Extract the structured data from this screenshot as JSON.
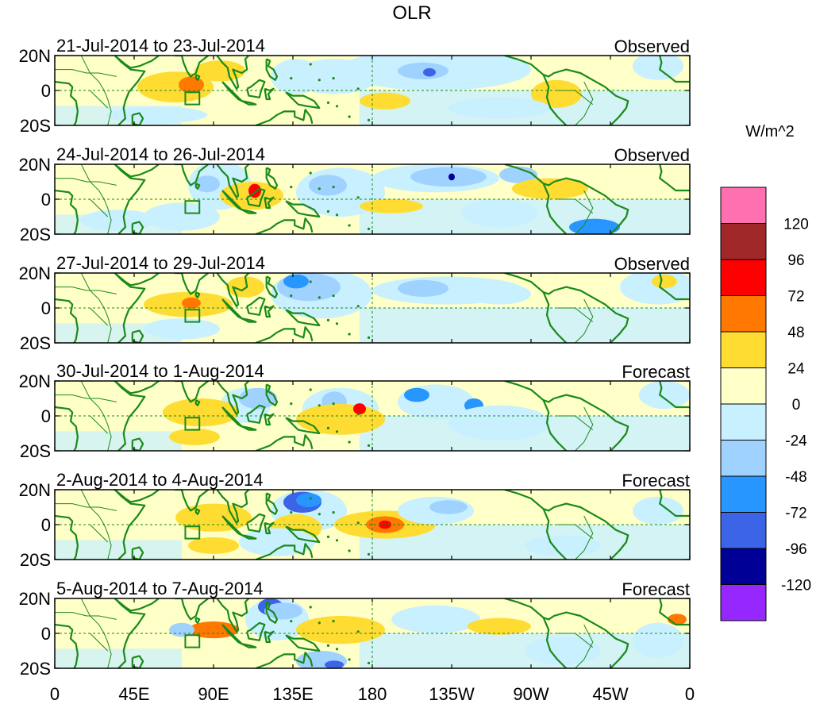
{
  "title": "OLR",
  "units_label": "W/m^2",
  "lat_labels": [
    "20N",
    "0",
    "20S"
  ],
  "lon_labels": [
    "0",
    "45E",
    "90E",
    "135E",
    "180",
    "135W",
    "90W",
    "45W",
    "0"
  ],
  "colors": {
    "ocean": "#ffffff",
    "coast": "#1a8a1a",
    "frame": "#000000"
  },
  "legend": {
    "bins": [
      {
        "color": "#ff70b0",
        "label": "120"
      },
      {
        "color": "#a02828",
        "label": "96"
      },
      {
        "color": "#ff0000",
        "label": "72"
      },
      {
        "color": "#ff7800",
        "label": "48"
      },
      {
        "color": "#ffdc32",
        "label": "24"
      },
      {
        "color": "#ffffc8",
        "label": "0"
      },
      {
        "color": "#c8f0ff",
        "label": "-24"
      },
      {
        "color": "#a0d2ff",
        "label": "-48"
      },
      {
        "color": "#2896ff",
        "label": "-72"
      },
      {
        "color": "#3c64e6",
        "label": "-96"
      },
      {
        "color": "#000096",
        "label": "-120"
      },
      {
        "color": "#9628ff",
        "label": ""
      }
    ]
  },
  "panels": [
    {
      "date_range": "21-Jul-2014 to 23-Jul-2014",
      "kind": "Observed"
    },
    {
      "date_range": "24-Jul-2014 to 26-Jul-2014",
      "kind": "Observed"
    },
    {
      "date_range": "27-Jul-2014 to 29-Jul-2014",
      "kind": "Observed"
    },
    {
      "date_range": "30-Jul-2014 to 1-Aug-2014",
      "kind": "Forecast"
    },
    {
      "date_range": "2-Aug-2014 to 4-Aug-2014",
      "kind": "Forecast"
    },
    {
      "date_range": "5-Aug-2014 to 7-Aug-2014",
      "kind": "Forecast"
    }
  ]
}
